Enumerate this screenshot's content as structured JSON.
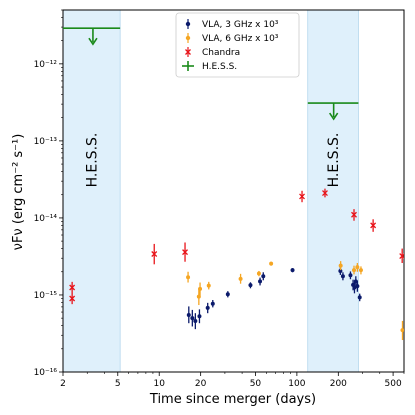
{
  "chart_data": {
    "type": "scatter",
    "xlabel": "Time since merger (days)",
    "ylabel": "νFν (erg cm⁻² s⁻¹)",
    "x_scale": "log",
    "y_scale": "log",
    "xlim": [
      2,
      600
    ],
    "ylim": [
      1e-16,
      5e-12
    ],
    "x_ticks": [
      2,
      5,
      10,
      20,
      50,
      100,
      200,
      500
    ],
    "x_tick_labels": [
      "2",
      "5",
      "10",
      "20",
      "50",
      "100",
      "200",
      "500"
    ],
    "y_ticks": [
      1e-16,
      1e-15,
      1e-14,
      1e-13,
      1e-12
    ],
    "y_tick_labels": [
      "10⁻¹⁶",
      "10⁻¹⁵",
      "10⁻¹⁴",
      "10⁻¹³",
      "10⁻¹²"
    ],
    "legend_position": "top-center",
    "bands": [
      {
        "label": "H.E.S.S.",
        "x_range": [
          2,
          5.2
        ],
        "color": "#dff0fb"
      },
      {
        "label": "H.E.S.S.",
        "x_range": [
          120,
          280
        ],
        "color": "#dff0fb"
      }
    ],
    "series": [
      {
        "name": "VLA, 3 GHz x 10³",
        "color": "#0b1a6b",
        "marker": "circle",
        "points": [
          {
            "x": 16.4,
            "y": 5.5e-16,
            "lo": 4.3e-16,
            "hi": 7.1e-16
          },
          {
            "x": 17.4,
            "y": 5e-16,
            "lo": 3.9e-16,
            "hi": 6.4e-16
          },
          {
            "x": 18.3,
            "y": 4.6e-16,
            "lo": 3.6e-16,
            "hi": 5.8e-16
          },
          {
            "x": 19.6,
            "y": 5.3e-16,
            "lo": 4.3e-16,
            "hi": 6.5e-16
          },
          {
            "x": 22.5,
            "y": 6.8e-16,
            "lo": 5.8e-16,
            "hi": 7.9e-16
          },
          {
            "x": 24.5,
            "y": 7.7e-16,
            "lo": 6.9e-16,
            "hi": 8.6e-16
          },
          {
            "x": 31.5,
            "y": 1.02e-15,
            "lo": 9.3e-16,
            "hi": 1.12e-15
          },
          {
            "x": 46,
            "y": 1.34e-15,
            "lo": 1.22e-15,
            "hi": 1.46e-15
          },
          {
            "x": 54,
            "y": 1.5e-15,
            "lo": 1.33e-15,
            "hi": 1.68e-15
          },
          {
            "x": 57,
            "y": 1.75e-15,
            "lo": 1.55e-15,
            "hi": 1.97e-15
          },
          {
            "x": 93,
            "y": 2.1e-15,
            "lo": 1.97e-15,
            "hi": 2.23e-15
          },
          {
            "x": 207,
            "y": 2.05e-15,
            "lo": 1.82e-15,
            "hi": 2.3e-15
          },
          {
            "x": 216,
            "y": 1.75e-15,
            "lo": 1.55e-15,
            "hi": 1.97e-15
          },
          {
            "x": 245,
            "y": 1.8e-15,
            "lo": 1.6e-15,
            "hi": 2.02e-15
          },
          {
            "x": 256,
            "y": 1.35e-15,
            "lo": 1.15e-15,
            "hi": 1.58e-15
          },
          {
            "x": 262,
            "y": 1.25e-15,
            "lo": 1.05e-15,
            "hi": 1.48e-15
          },
          {
            "x": 268,
            "y": 1.5e-15,
            "lo": 1.28e-15,
            "hi": 1.75e-15
          },
          {
            "x": 275,
            "y": 1.3e-15,
            "lo": 1.1e-15,
            "hi": 1.53e-15
          },
          {
            "x": 286,
            "y": 9.3e-16,
            "lo": 8.3e-16,
            "hi": 1.04e-15
          }
        ]
      },
      {
        "name": "VLA, 6 GHz x 10³",
        "color": "#f5a623",
        "marker": "circle",
        "points": [
          {
            "x": 16.2,
            "y": 1.7e-15,
            "lo": 1.45e-15,
            "hi": 2e-15
          },
          {
            "x": 19.4,
            "y": 9.5e-16,
            "lo": 7.4e-16,
            "hi": 1.22e-15
          },
          {
            "x": 19.8,
            "y": 1.2e-15,
            "lo": 9.8e-16,
            "hi": 1.45e-15
          },
          {
            "x": 22.9,
            "y": 1.32e-15,
            "lo": 1.18e-15,
            "hi": 1.48e-15
          },
          {
            "x": 39,
            "y": 1.62e-15,
            "lo": 1.4e-15,
            "hi": 1.88e-15
          },
          {
            "x": 53,
            "y": 1.9e-15,
            "lo": 1.75e-15,
            "hi": 2.05e-15
          },
          {
            "x": 65,
            "y": 2.55e-15,
            "lo": 2.4e-15,
            "hi": 2.7e-15
          },
          {
            "x": 208,
            "y": 2.4e-15,
            "lo": 2.1e-15,
            "hi": 2.75e-15
          },
          {
            "x": 260,
            "y": 2.1e-15,
            "lo": 1.85e-15,
            "hi": 2.4e-15
          },
          {
            "x": 275,
            "y": 2.3e-15,
            "lo": 2e-15,
            "hi": 2.6e-15
          },
          {
            "x": 292,
            "y": 2.1e-15,
            "lo": 1.85e-15,
            "hi": 2.35e-15
          },
          {
            "x": 585,
            "y": 3.5e-16,
            "lo": 2.6e-16,
            "hi": 4.6e-16
          }
        ]
      },
      {
        "name": "Chandra",
        "color": "#e8141a",
        "marker": "x",
        "points": [
          {
            "x": 2.33,
            "y": 1.25e-15,
            "lo": 1.05e-15,
            "hi": 1.48e-15
          },
          {
            "x": 2.33,
            "y": 9e-16,
            "lo": 7.6e-16,
            "hi": 1.06e-15
          },
          {
            "x": 9.2,
            "y": 3.4e-15,
            "lo": 2.5e-15,
            "hi": 4.6e-15
          },
          {
            "x": 15.4,
            "y": 3.6e-15,
            "lo": 2.7e-15,
            "hi": 4.8e-15
          },
          {
            "x": 109,
            "y": 1.9e-14,
            "lo": 1.6e-14,
            "hi": 2.25e-14
          },
          {
            "x": 160,
            "y": 2.1e-14,
            "lo": 1.85e-14,
            "hi": 2.4e-14
          },
          {
            "x": 260,
            "y": 1.1e-14,
            "lo": 9.2e-15,
            "hi": 1.3e-14
          },
          {
            "x": 358,
            "y": 8e-15,
            "lo": 6.6e-15,
            "hi": 9.6e-15
          },
          {
            "x": 582,
            "y": 3.2e-15,
            "lo": 2.6e-15,
            "hi": 4e-15
          }
        ]
      },
      {
        "name": "H.E.S.S.",
        "color": "#1a8a1a",
        "marker": "upper-limit",
        "points": [
          {
            "x_start": 2,
            "x_end": 5.2,
            "x": 3.3,
            "y": 2.9e-12
          },
          {
            "x_start": 120,
            "x_end": 280,
            "x": 185,
            "y": 3.1e-13
          }
        ]
      }
    ]
  }
}
